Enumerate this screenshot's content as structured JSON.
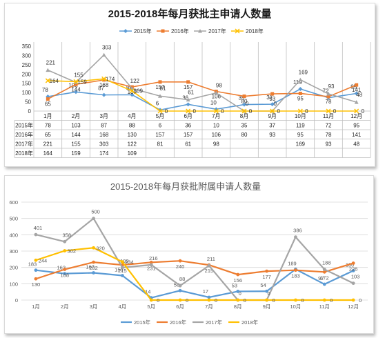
{
  "colors": {
    "s2015": "#5b9bd5",
    "s2016": "#ed7d31",
    "s2017": "#a5a5a5",
    "s2018": "#ffc000"
  },
  "chart_data": [
    {
      "type": "line",
      "title": "2015-2018年每月获批主申请人数量",
      "categories": [
        "1月",
        "2月",
        "3月",
        "4月",
        "5月",
        "6月",
        "7月",
        "8月",
        "9月",
        "10月",
        "11月",
        "12月"
      ],
      "ylim": [
        0,
        350
      ],
      "yticks": [
        0,
        50,
        100,
        150,
        200,
        250,
        300,
        350
      ],
      "grid": "vertical",
      "legend": "top",
      "data_table": true,
      "series": [
        {
          "name": "2015年",
          "values": [
            78,
            103,
            87,
            88,
            6,
            36,
            10,
            35,
            37,
            119,
            72,
            95
          ]
        },
        {
          "name": "2016年",
          "values": [
            65,
            144,
            168,
            130,
            157,
            157,
            106,
            80,
            93,
            95,
            78,
            141
          ]
        },
        {
          "name": "2017年",
          "values": [
            221,
            155,
            303,
            122,
            81,
            61,
            98,
            0,
            0,
            169,
            93,
            48
          ]
        },
        {
          "name": "2018年",
          "values": [
            164,
            159,
            174,
            109,
            0,
            0,
            0,
            0,
            0,
            0,
            0,
            0
          ]
        }
      ],
      "table": [
        {
          "name": "2015年",
          "cells": [
            "78",
            "103",
            "87",
            "88",
            "6",
            "36",
            "10",
            "35",
            "37",
            "119",
            "72",
            "95"
          ]
        },
        {
          "name": "2016年",
          "cells": [
            "65",
            "144",
            "168",
            "130",
            "157",
            "157",
            "106",
            "80",
            "93",
            "95",
            "78",
            "141"
          ]
        },
        {
          "name": "2017年",
          "cells": [
            "221",
            "155",
            "303",
            "122",
            "81",
            "61",
            "98",
            "",
            "",
            "169",
            "93",
            "48"
          ]
        },
        {
          "name": "2018年",
          "cells": [
            "164",
            "159",
            "174",
            "109",
            "",
            "",
            "",
            "",
            "",
            "",
            "",
            ""
          ]
        }
      ]
    },
    {
      "type": "line",
      "title": "2015-2018年每月获批附属申请人数量",
      "categories": [
        "1月",
        "2月",
        "3月",
        "4月",
        "5月",
        "6月",
        "7月",
        "8月",
        "9月",
        "10月",
        "11月",
        "12月"
      ],
      "ylim": [
        0,
        600
      ],
      "yticks": [
        0,
        100,
        200,
        300,
        400,
        500,
        600
      ],
      "grid": "horizontal",
      "legend": "bottom",
      "series": [
        {
          "name": "2015年",
          "values": [
            183,
            162,
            167,
            150,
            14,
            58,
            17,
            53,
            54,
            189,
            97,
            180
          ]
        },
        {
          "name": "2016年",
          "values": [
            130,
            188,
            232,
            215,
            231,
            240,
            215,
            156,
            177,
            183,
            172,
            226
          ]
        },
        {
          "name": "2017年",
          "values": [
            401,
            358,
            500,
            199,
            216,
            88,
            211,
            0,
            0,
            386,
            188,
            103
          ]
        },
        {
          "name": "2018年",
          "values": [
            244,
            302,
            320,
            234,
            0,
            0,
            0,
            0,
            0,
            0,
            0,
            0
          ]
        }
      ]
    }
  ]
}
